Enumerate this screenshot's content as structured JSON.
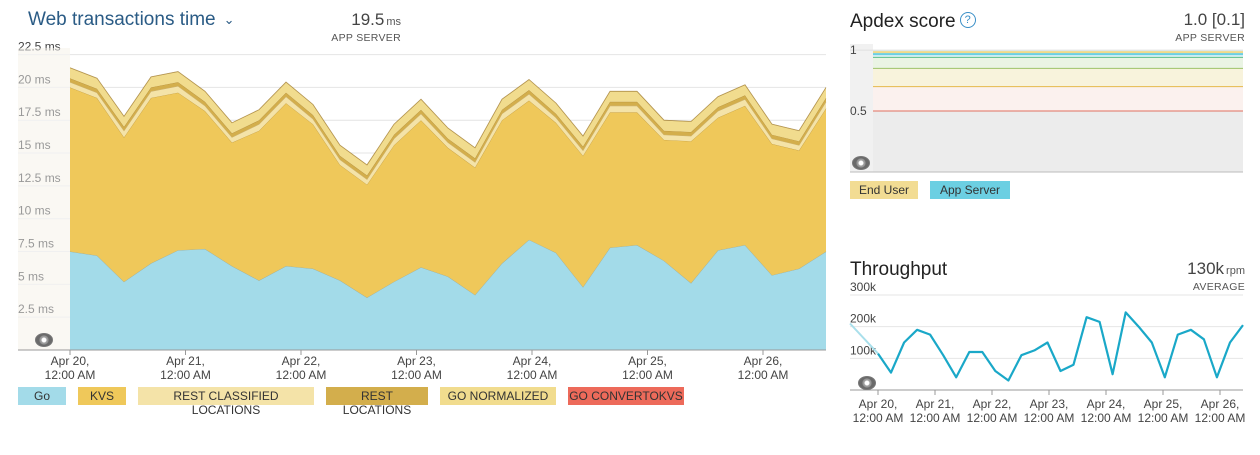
{
  "web_tx": {
    "title": "Web transactions time",
    "value": "19.5",
    "unit": "ms",
    "sublabel": "APP SERVER",
    "y_ticks": [
      "22.5 ms",
      "20 ms",
      "17.5 ms",
      "15 ms",
      "12.5 ms",
      "10 ms",
      "7.5 ms",
      "5 ms",
      "2.5 ms"
    ],
    "x_ticks": [
      [
        "Apr 20,",
        "12:00 AM"
      ],
      [
        "Apr 21,",
        "12:00 AM"
      ],
      [
        "Apr 22,",
        "12:00 AM"
      ],
      [
        "Apr 23,",
        "12:00 AM"
      ],
      [
        "Apr 24,",
        "12:00 AM"
      ],
      [
        "Apr 25,",
        "12:00 AM"
      ],
      [
        "Apr 26,",
        "12:00 AM"
      ]
    ],
    "legend": [
      {
        "label": "Go",
        "color": "#a3dbe9"
      },
      {
        "label": "KVS",
        "color": "#efc85a"
      },
      {
        "label": "REST CLASSIFIED LOCATIONS",
        "color": "#f4e3a8"
      },
      {
        "label": "REST LOCATIONS",
        "color": "#d3ae4c"
      },
      {
        "label": "GO NORMALIZED",
        "color": "#f1dc8e"
      },
      {
        "label": "GO CONVERTOKVS",
        "color": "#ed6a5a"
      }
    ]
  },
  "apdex": {
    "title": "Apdex score",
    "value": "1.0 [0.1]",
    "sublabel": "APP SERVER",
    "y_ticks": [
      "1",
      "0.5"
    ],
    "legend": [
      {
        "label": "End User",
        "color": "#f2dc93"
      },
      {
        "label": "App Server",
        "color": "#6ccfe2"
      }
    ]
  },
  "throughput": {
    "title": "Throughput",
    "value": "130k",
    "unit": "rpm",
    "sublabel": "AVERAGE",
    "y_ticks": [
      "300k",
      "200k",
      "100k"
    ],
    "x_ticks": [
      [
        "Apr 20,",
        "12:00 AM"
      ],
      [
        "Apr 21,",
        "12:00 AM"
      ],
      [
        "Apr 22,",
        "12:00 AM"
      ],
      [
        "Apr 23,",
        "12:00 AM"
      ],
      [
        "Apr 24,",
        "12:00 AM"
      ],
      [
        "Apr 25,",
        "12:00 AM"
      ],
      [
        "Apr 26,",
        "12:00 AM"
      ]
    ]
  },
  "chart_data": [
    {
      "type": "area",
      "title": "Web transactions time",
      "ylabel": "ms",
      "ylim": [
        0,
        22.5
      ],
      "x": [
        "Apr 19 20:00",
        "Apr 20 00:00",
        "Apr 20 06:00",
        "Apr 20 12:00",
        "Apr 20 18:00",
        "Apr 21 00:00",
        "Apr 21 06:00",
        "Apr 21 12:00",
        "Apr 21 18:00",
        "Apr 22 00:00",
        "Apr 22 06:00",
        "Apr 22 12:00",
        "Apr 22 18:00",
        "Apr 23 00:00",
        "Apr 23 06:00",
        "Apr 23 12:00",
        "Apr 23 18:00",
        "Apr 24 00:00",
        "Apr 24 06:00",
        "Apr 24 12:00",
        "Apr 24 18:00",
        "Apr 25 00:00",
        "Apr 25 06:00",
        "Apr 25 12:00",
        "Apr 25 18:00",
        "Apr 26 00:00",
        "Apr 26 06:00",
        "Apr 26 12:00",
        "Apr 26 18:00"
      ],
      "series": [
        {
          "name": "Go",
          "values": [
            7.5,
            7.2,
            5.2,
            6.6,
            7.6,
            7.7,
            6.4,
            5.3,
            6.4,
            6.2,
            5.3,
            4.0,
            5.2,
            6.3,
            5.6,
            4.2,
            6.6,
            8.4,
            7.4,
            4.8,
            7.8,
            8.0,
            6.8,
            5.1,
            7.6,
            8.0,
            5.7,
            6.2,
            7.5
          ]
        },
        {
          "name": "KVS",
          "values": [
            12.5,
            12.0,
            11.0,
            12.6,
            12.0,
            10.5,
            9.4,
            11.4,
            12.4,
            11.0,
            8.8,
            8.6,
            10.4,
            11.2,
            9.8,
            9.7,
            10.9,
            10.6,
            9.9,
            10.0,
            10.3,
            10.1,
            9.2,
            10.8,
            10.1,
            10.6,
            10.0,
            9.0,
            10.9
          ]
        },
        {
          "name": "REST CLASSIFIED LOCATIONS",
          "values": [
            0.4,
            0.4,
            0.5,
            0.5,
            0.5,
            0.4,
            0.4,
            0.5,
            0.5,
            0.4,
            0.4,
            0.4,
            0.5,
            0.5,
            0.4,
            0.4,
            0.5,
            0.5,
            0.4,
            0.4,
            0.5,
            0.5,
            0.4,
            0.4,
            0.5,
            0.5,
            0.4,
            0.4,
            0.5
          ]
        },
        {
          "name": "REST LOCATIONS",
          "values": [
            0.3,
            0.3,
            0.3,
            0.3,
            0.3,
            0.3,
            0.3,
            0.3,
            0.3,
            0.3,
            0.3,
            0.3,
            0.3,
            0.3,
            0.3,
            0.3,
            0.3,
            0.3,
            0.3,
            0.3,
            0.3,
            0.3,
            0.3,
            0.3,
            0.3,
            0.3,
            0.3,
            0.3,
            0.3
          ]
        },
        {
          "name": "GO NORMALIZED",
          "values": [
            0.8,
            0.8,
            0.8,
            0.8,
            0.8,
            0.8,
            0.8,
            0.8,
            0.8,
            0.8,
            0.8,
            0.8,
            0.8,
            0.8,
            0.8,
            0.8,
            0.8,
            0.8,
            0.8,
            0.8,
            0.8,
            0.8,
            0.8,
            0.8,
            0.8,
            0.8,
            0.8,
            0.8,
            0.8
          ]
        },
        {
          "name": "GO CONVERTOKVS",
          "values": [
            0,
            0,
            0,
            0,
            0,
            0,
            0,
            0,
            0,
            0,
            0,
            0,
            0,
            0,
            0,
            0,
            0,
            0,
            0,
            0,
            0,
            0,
            0,
            0,
            0,
            0,
            0,
            0,
            0
          ]
        }
      ]
    },
    {
      "type": "line",
      "title": "Apdex score",
      "ylim": [
        0,
        1
      ],
      "series": [
        {
          "name": "End User",
          "values": [
            1.0,
            1.0
          ]
        },
        {
          "name": "App Server",
          "values": [
            1.0,
            1.0
          ]
        }
      ],
      "thresholds": [
        0.94,
        0.85,
        0.7,
        0.5
      ]
    },
    {
      "type": "line",
      "title": "Throughput",
      "ylabel": "rpm",
      "ylim": [
        0,
        300000
      ],
      "x": [
        "Apr 19 20:00",
        "Apr 20 00:00",
        "Apr 20 06:00",
        "Apr 20 12:00",
        "Apr 20 18:00",
        "Apr 21 00:00",
        "Apr 21 06:00",
        "Apr 21 12:00",
        "Apr 21 18:00",
        "Apr 22 00:00",
        "Apr 22 06:00",
        "Apr 22 12:00",
        "Apr 22 18:00",
        "Apr 23 00:00",
        "Apr 23 06:00",
        "Apr 23 12:00",
        "Apr 23 18:00",
        "Apr 24 00:00",
        "Apr 24 06:00",
        "Apr 24 12:00",
        "Apr 24 18:00",
        "Apr 25 00:00",
        "Apr 25 06:00",
        "Apr 25 12:00",
        "Apr 25 18:00",
        "Apr 26 00:00",
        "Apr 26 06:00",
        "Apr 26 12:00",
        "Apr 26 18:00"
      ],
      "series": [
        {
          "name": "Throughput",
          "values": [
            115000,
            55000,
            150000,
            190000,
            175000,
            110000,
            40000,
            120000,
            120000,
            60000,
            30000,
            110000,
            125000,
            150000,
            60000,
            80000,
            230000,
            215000,
            50000,
            245000,
            200000,
            150000,
            40000,
            175000,
            190000,
            160000,
            40000,
            150000,
            205000
          ]
        }
      ]
    }
  ]
}
